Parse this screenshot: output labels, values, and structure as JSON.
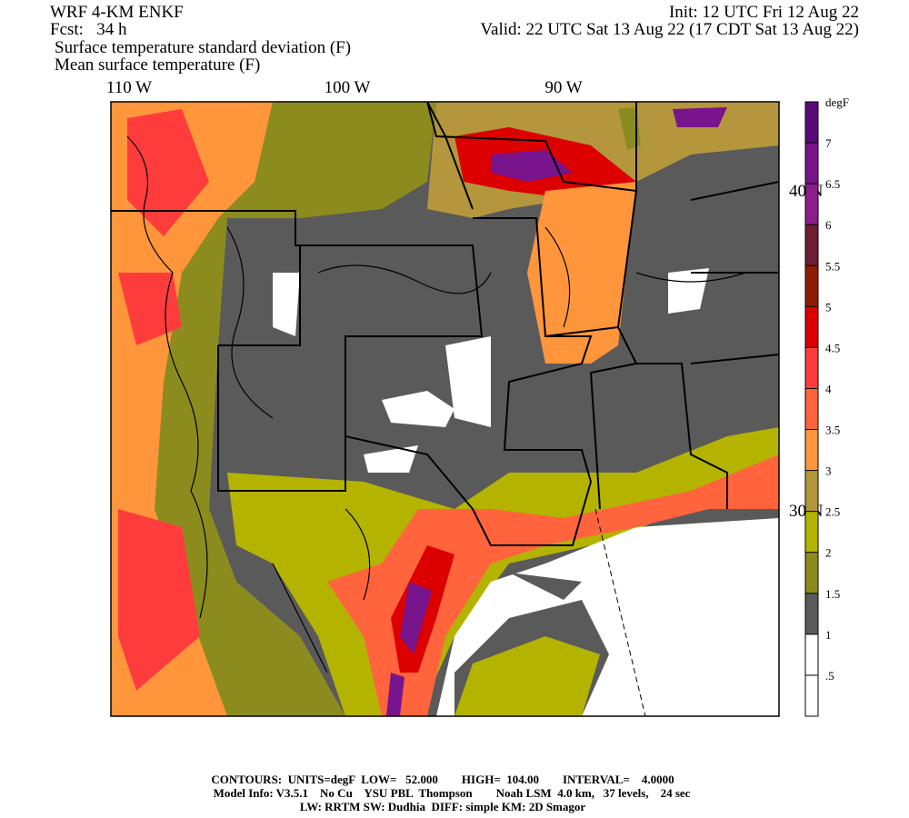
{
  "header": {
    "model": "WRF 4-KM ENKF",
    "forecast": "Fcst:   34 h",
    "init": "Init: 12 UTC Fri 12 Aug 22",
    "valid": "Valid: 22 UTC Sat 13 Aug 22 (17 CDT Sat 13 Aug 22)",
    "fields": [
      "Surface temperature standard deviation (F)",
      "Mean surface temperature (F)"
    ]
  },
  "map": {
    "longitude_labels": [
      "110 W",
      "100 W",
      "90 W"
    ],
    "latitude_labels": [
      "40 N",
      "30 N"
    ]
  },
  "colorbar": {
    "unit": "degF",
    "labels": [
      ".5",
      "1",
      "1.5",
      "2",
      "2.5",
      "3",
      "3.5",
      "4",
      "4.5",
      "5",
      "5.5",
      "6",
      "6.5",
      "7"
    ],
    "colors": [
      "#ffffff",
      "#ffffff",
      "#5a5a5a",
      "#8c8c1e",
      "#b4b400",
      "#b4963c",
      "#ff963c",
      "#ff643c",
      "#ff3c3c",
      "#dc0000",
      "#8c1e00",
      "#6e1e32",
      "#8c1e8c",
      "#78148c",
      "#5a0a78"
    ]
  },
  "footer": {
    "lines": [
      "CONTOURS:  UNITS=degF  LOW=   52.000        HIGH=  104.00        INTERVAL=    4.0000",
      "Model Info: V3.5.1    No Cu    YSU PBL  Thompson        Noah LSM  4.0 km,   37 levels,    24 sec",
      "LW: RRTM SW: Dudhia  DIFF: simple KM: 2D Smagor"
    ]
  }
}
